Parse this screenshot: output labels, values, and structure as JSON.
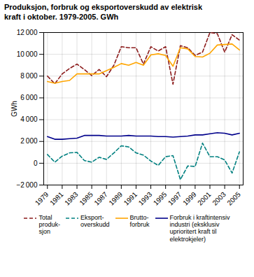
{
  "chart_data": {
    "type": "line",
    "title": "Produksjon, forbruk og eksportoverskudd av elektrisk\nkraft i oktober. 1979-2005. GWh",
    "y_label": "GWh",
    "x": [
      1979,
      1980,
      1981,
      1982,
      1983,
      1984,
      1985,
      1986,
      1987,
      1988,
      1989,
      1990,
      1991,
      1992,
      1993,
      1994,
      1995,
      1996,
      1997,
      1998,
      1999,
      2000,
      2001,
      2002,
      2003,
      2004,
      2005
    ],
    "series": [
      {
        "name": "Total\nproduk-\nsjon",
        "color": "#8B1A1A",
        "line_style": "dashed",
        "values": [
          8000,
          7300,
          8200,
          8700,
          9100,
          8600,
          8050,
          8600,
          7950,
          9000,
          10700,
          10600,
          10600,
          9100,
          10700,
          10300,
          10700,
          7250,
          10800,
          10600,
          9900,
          10200,
          12000,
          11900,
          10200,
          11800,
          11300
        ]
      },
      {
        "name": "Eksport-\noverskudd",
        "color": "#008080",
        "line_style": "dashed",
        "values": [
          800,
          100,
          650,
          950,
          1000,
          250,
          100,
          550,
          350,
          950,
          1600,
          1500,
          950,
          750,
          200,
          -200,
          600,
          700,
          -1500,
          -250,
          -300,
          1850,
          600,
          600,
          300,
          -900,
          1050
        ]
      },
      {
        "name": "Brutto-\nforbruk",
        "color": "#FFA500",
        "line_style": "solid",
        "values": [
          7500,
          7350,
          7500,
          7600,
          8200,
          8200,
          8200,
          8200,
          8500,
          8800,
          9150,
          9000,
          9250,
          9000,
          9950,
          10050,
          9900,
          8900,
          10600,
          10500,
          9800,
          9750,
          10100,
          10850,
          10900,
          10950,
          10400
        ]
      },
      {
        "name": "Forbruk i kraftintensiv\nindustri (eksklusiv\nuprioritert kraft til\nelektrokjeler)",
        "color": "#00008B",
        "line_style": "solid",
        "values": [
          2450,
          2200,
          2200,
          2250,
          2300,
          2550,
          2550,
          2550,
          2500,
          2500,
          2500,
          2550,
          2500,
          2500,
          2500,
          2450,
          2450,
          2400,
          2450,
          2500,
          2600,
          2600,
          2700,
          2800,
          2750,
          2600,
          2750
        ]
      }
    ],
    "xlim": [
      1978.5,
      2005.5
    ],
    "xticks": [
      1979,
      1981,
      1983,
      1985,
      1987,
      1989,
      1991,
      1993,
      1995,
      1997,
      1999,
      2001,
      2003,
      2005
    ],
    "ylim": [
      -2000,
      12000
    ],
    "yticks": [
      {
        "value": -2000,
        "label": "−2 000"
      },
      0,
      {
        "value": 2000,
        "label": "2 000"
      },
      {
        "value": 4000,
        "label": "4 000"
      },
      {
        "value": 6000,
        "label": "6 000"
      },
      {
        "value": 8000,
        "label": "8 000"
      },
      {
        "value": 10000,
        "label": "10 000"
      },
      {
        "value": 12000,
        "label": "12 000"
      }
    ],
    "grid": true,
    "legend": "bottom"
  }
}
